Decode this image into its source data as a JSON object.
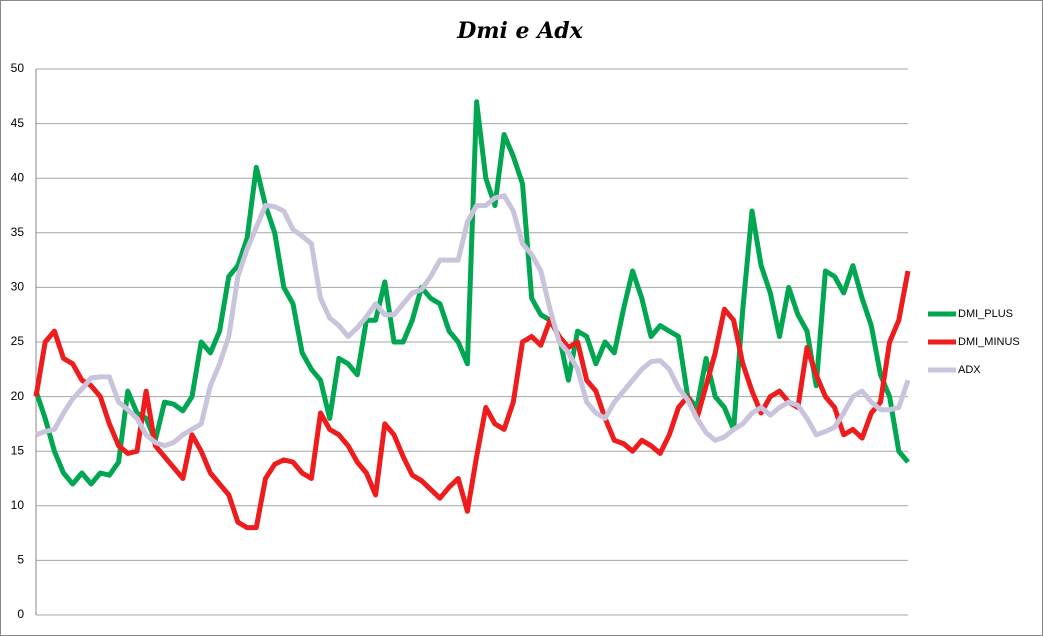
{
  "chart_data": {
    "type": "line",
    "title": "Dmi e Adx",
    "categories": [
      null,
      null,
      null,
      null,
      null,
      null,
      null,
      null,
      null,
      null,
      null,
      null,
      null,
      null,
      null,
      null,
      null,
      null,
      null,
      null,
      null,
      null,
      null,
      null,
      null,
      null,
      null,
      null,
      null,
      null,
      null,
      null,
      null,
      null,
      null,
      null,
      null,
      null,
      null,
      null,
      null,
      null,
      null,
      null,
      null,
      null,
      null,
      null,
      null,
      null,
      null,
      null,
      null,
      null,
      null,
      null,
      null,
      null,
      null,
      null,
      null,
      null,
      null,
      null,
      null,
      null,
      null,
      null,
      null,
      null,
      null,
      null,
      null,
      null,
      null,
      null,
      null,
      null,
      null,
      null,
      null,
      null,
      null,
      null,
      null,
      null,
      null,
      null,
      null,
      null,
      null,
      null,
      null,
      null,
      null,
      null
    ],
    "series": [
      {
        "name": "DMI_PLUS",
        "color": "#00a650",
        "values": [
          20.5,
          18,
          15,
          13,
          12,
          13,
          12,
          13,
          12.8,
          14,
          20.5,
          18.5,
          18,
          16,
          19.5,
          19.3,
          18.7,
          20,
          25,
          24,
          26,
          31,
          32,
          34.5,
          41,
          37.5,
          35,
          30,
          28.5,
          24,
          22.5,
          21.5,
          18,
          23.5,
          23,
          22,
          27,
          27,
          30.5,
          25,
          25,
          27,
          30,
          29,
          28.5,
          26,
          25,
          23,
          47,
          40,
          37.5,
          44,
          42,
          39.5,
          29,
          27.5,
          27,
          25.5,
          21.5,
          26,
          25.5,
          23,
          25,
          24,
          28,
          31.5,
          29,
          25.5,
          26.5,
          26,
          25.5,
          20,
          19,
          23.5,
          20,
          19,
          17,
          28,
          37,
          32,
          29.5,
          25.5,
          30,
          27.5,
          26,
          21,
          31.5,
          31,
          29.5,
          32,
          29,
          26.5,
          22,
          20,
          15,
          14
        ]
      },
      {
        "name": "DMI_MINUS",
        "color": "#ee1c1c",
        "values": [
          20,
          25,
          26,
          23.5,
          23,
          21.5,
          21,
          20,
          17.5,
          15.5,
          14.8,
          15,
          20.5,
          15.5,
          14.5,
          13.5,
          12.5,
          16.5,
          15,
          13,
          12,
          11,
          8.5,
          8,
          8,
          12.5,
          13.8,
          14.2,
          14,
          13,
          12.5,
          18.5,
          17,
          16.5,
          15.5,
          14,
          13,
          11,
          17.5,
          16.5,
          14.5,
          12.8,
          12.3,
          11.5,
          10.7,
          11.7,
          12.5,
          9.5,
          14.5,
          19,
          17.5,
          17,
          19.5,
          25,
          25.5,
          24.7,
          27,
          25.5,
          24.5,
          25,
          21.5,
          20.5,
          18,
          16,
          15.7,
          15,
          16,
          15.5,
          14.8,
          16.5,
          19,
          20,
          18,
          21,
          24,
          28,
          27,
          23,
          20.5,
          18.5,
          20,
          20.5,
          19.5,
          19,
          24.5,
          22,
          20,
          19,
          16.5,
          17,
          16.2,
          18.5,
          19.5,
          25,
          27,
          31.5
        ]
      },
      {
        "name": "ADX",
        "color": "#c9c3dc",
        "values": [
          16.5,
          16.8,
          17,
          18.5,
          19.8,
          20.7,
          21.7,
          21.8,
          21.8,
          19.5,
          18.8,
          18,
          16.5,
          15.8,
          15.5,
          15.8,
          16.5,
          17,
          17.5,
          21,
          23,
          25.5,
          31,
          33.5,
          35.5,
          37.5,
          37.4,
          37,
          35.3,
          34.7,
          34,
          29,
          27.2,
          26.5,
          25.5,
          26.3,
          27.3,
          28.5,
          27.5,
          27.5,
          28.5,
          29.5,
          29.8,
          31,
          32.5,
          32.5,
          32.5,
          36,
          37.5,
          37.5,
          38.2,
          38.4,
          37,
          34,
          33,
          31.5,
          28,
          25,
          24,
          22.5,
          19.5,
          18.5,
          18,
          19.5,
          20.5,
          21.5,
          22.5,
          23.2,
          23.3,
          22.5,
          20.8,
          19.7,
          18,
          16.7,
          16,
          16.3,
          17,
          17.5,
          18.5,
          19,
          18.3,
          19,
          19.5,
          19.2,
          18,
          16.5,
          16.8,
          17.2,
          18.5,
          20,
          20.5,
          19.5,
          18.8,
          18.8,
          19,
          21.5
        ]
      }
    ],
    "ylim": [
      0,
      50
    ],
    "yticks": [
      0,
      5,
      10,
      15,
      20,
      25,
      30,
      35,
      40,
      45,
      50
    ],
    "grid": true,
    "legend": "right"
  }
}
